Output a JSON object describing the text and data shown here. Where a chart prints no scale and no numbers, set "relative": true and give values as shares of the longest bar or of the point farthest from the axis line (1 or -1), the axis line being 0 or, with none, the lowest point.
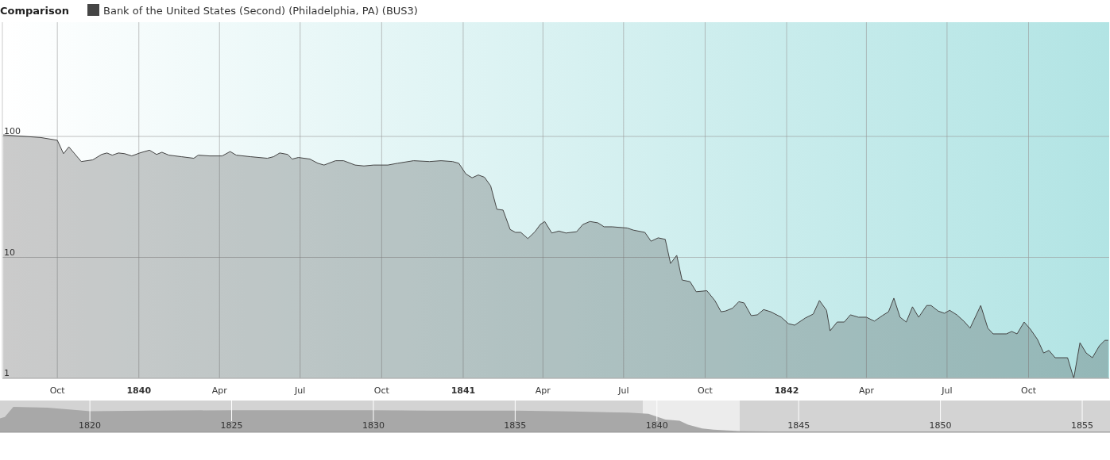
{
  "chart_data": [
    {
      "type": "area",
      "title": "Comparison",
      "legend": "top left",
      "log": "y",
      "grid": true,
      "x": [
        "1839-08-01",
        "1839-09-12",
        "1839-10-01",
        "1839-10-08",
        "1839-10-14",
        "1839-10-28",
        "1839-11-10",
        "1839-11-20",
        "1839-11-26",
        "1839-12-02",
        "1839-12-09",
        "1839-12-16",
        "1839-12-24",
        "1840-01-02",
        "1840-01-13",
        "1840-01-21",
        "1840-01-27",
        "1840-02-04",
        "1840-02-18",
        "1840-03-03",
        "1840-03-08",
        "1840-03-21",
        "1840-04-04",
        "1840-04-13",
        "1840-04-20",
        "1840-05-06",
        "1840-05-25",
        "1840-06-01",
        "1840-06-08",
        "1840-06-17",
        "1840-06-22",
        "1840-06-29",
        "1840-07-12",
        "1840-07-21",
        "1840-07-28",
        "1840-08-10",
        "1840-08-19",
        "1840-09-01",
        "1840-09-11",
        "1840-09-22",
        "1840-10-08",
        "1840-10-19",
        "1840-11-06",
        "1840-11-24",
        "1840-12-07",
        "1840-12-20",
        "1840-12-27",
        "1841-01-04",
        "1841-01-11",
        "1841-01-18",
        "1841-01-25",
        "1841-02-01",
        "1841-02-08",
        "1841-02-15",
        "1841-02-23",
        "1841-03-01",
        "1841-03-07",
        "1841-03-15",
        "1841-03-23",
        "1841-03-29",
        "1841-04-03",
        "1841-04-11",
        "1841-04-19",
        "1841-04-27",
        "1841-05-09",
        "1841-05-16",
        "1841-05-24",
        "1841-06-02",
        "1841-06-09",
        "1841-06-18",
        "1841-07-05",
        "1841-07-12",
        "1841-07-25",
        "1841-08-01",
        "1841-08-09",
        "1841-08-17",
        "1841-08-23",
        "1841-08-30",
        "1841-09-05",
        "1841-09-14",
        "1841-09-21",
        "1841-10-03",
        "1841-10-12",
        "1841-10-19",
        "1841-10-24",
        "1841-11-01",
        "1841-11-08",
        "1841-11-14",
        "1841-11-22",
        "1841-11-29",
        "1841-12-06",
        "1841-12-14",
        "1841-12-26",
        "1842-01-03",
        "1842-01-10",
        "1842-01-22",
        "1842-01-31",
        "1842-02-07",
        "1842-02-15",
        "1842-02-19",
        "1842-02-27",
        "1842-03-07",
        "1842-03-14",
        "1842-03-23",
        "1842-04-01",
        "1842-04-10",
        "1842-04-19",
        "1842-04-26",
        "1842-05-02",
        "1842-05-09",
        "1842-05-16",
        "1842-05-23",
        "1842-05-30",
        "1842-06-08",
        "1842-06-13",
        "1842-06-21",
        "1842-06-28",
        "1842-07-04",
        "1842-07-12",
        "1842-07-20",
        "1842-07-27",
        "1842-08-08",
        "1842-08-16",
        "1842-08-22",
        "1842-09-06",
        "1842-09-12",
        "1842-09-18",
        "1842-09-26",
        "1842-10-03",
        "1842-10-11",
        "1842-10-18",
        "1842-10-24",
        "1842-10-31",
        "1842-11-14",
        "1842-11-21",
        "1842-11-28",
        "1842-12-05",
        "1842-12-12",
        "1842-12-20",
        "1842-12-26",
        "1842-12-30"
      ],
      "series": [
        {
          "name": "Bank of the United States (Second) (Philadelphia, PA) (BUS3)",
          "color": "#454545",
          "values": [
            103,
            98,
            93,
            72,
            82,
            62,
            64,
            71,
            73,
            70,
            73,
            72,
            69,
            73,
            77,
            71,
            74,
            70,
            68,
            66,
            70,
            69,
            69,
            75,
            70,
            68,
            66,
            68,
            73,
            71,
            65,
            67,
            65,
            60,
            58,
            63,
            63,
            58,
            57,
            58,
            58,
            60,
            63,
            62,
            63,
            62,
            60,
            49,
            45.5,
            48,
            46,
            39,
            25,
            24.6,
            17,
            16.1,
            16.1,
            14.3,
            16.3,
            18.7,
            19.8,
            15.9,
            16.5,
            15.9,
            16.3,
            18.7,
            19.8,
            19.3,
            17.9,
            17.9,
            17.5,
            16.8,
            16.1,
            13.6,
            14.5,
            14.1,
            8.9,
            10.4,
            6.5,
            6.3,
            5.2,
            5.3,
            4.4,
            3.55,
            3.6,
            3.8,
            4.3,
            4.2,
            3.3,
            3.35,
            3.7,
            3.55,
            3.2,
            2.83,
            2.75,
            3.15,
            3.4,
            4.4,
            3.65,
            2.47,
            2.92,
            2.92,
            3.35,
            3.2,
            3.2,
            2.97,
            3.3,
            3.55,
            4.6,
            3.2,
            2.92,
            3.9,
            3.2,
            4.0,
            4.0,
            3.6,
            3.45,
            3.65,
            3.35,
            2.97,
            2.6,
            4.0,
            2.6,
            2.33,
            2.33,
            2.44,
            2.33,
            2.92,
            2.55,
            2.1,
            1.62,
            1.7,
            1.48,
            1.48,
            1.0,
            1.97,
            1.62,
            1.48,
            1.86,
            2.06,
            2.06
          ]
        }
      ],
      "xlim": [
        "1839-07-31",
        "1842-12-31"
      ],
      "xticks": [
        {
          "value": "1839-10-01",
          "label": "Oct"
        },
        {
          "value": "1840-01-01",
          "label": "1840"
        },
        {
          "value": "1840-04-01",
          "label": "Apr"
        },
        {
          "value": "1840-07-01",
          "label": "Jul"
        },
        {
          "value": "1840-10-01",
          "label": "Oct"
        },
        {
          "value": "1841-01-01",
          "label": "1841"
        },
        {
          "value": "1841-04-01",
          "label": "Apr"
        },
        {
          "value": "1841-07-01",
          "label": "Jul"
        },
        {
          "value": "1841-10-01",
          "label": "Oct"
        },
        {
          "value": "1842-01-01",
          "label": "1842"
        },
        {
          "value": "1842-04-01",
          "label": "Apr"
        },
        {
          "value": "1842-07-01",
          "label": "Jul"
        },
        {
          "value": "1842-10-01",
          "label": "Oct"
        }
      ],
      "ylim": [
        1,
        880
      ],
      "yticks": [
        1,
        10,
        100
      ]
    },
    {
      "type": "area",
      "relative": true,
      "tick_labels": "x",
      "grid": "x",
      "color": "#a8a8a8",
      "x": [
        1816.83,
        1817.0,
        1817.3,
        1818.5,
        1819.6,
        1820,
        1822,
        1825,
        1828,
        1830,
        1832,
        1835,
        1837,
        1839,
        1839.7,
        1840.3,
        1840.8,
        1841.1,
        1841.6,
        1842,
        1842.9,
        1844,
        1850,
        1855.98
      ],
      "values": [
        0.55,
        0.6,
        1,
        0.97,
        0.87,
        0.83,
        0.85,
        0.87,
        0.87,
        0.87,
        0.85,
        0.85,
        0.82,
        0.77,
        0.73,
        0.5,
        0.45,
        0.3,
        0.15,
        0.1,
        0.05,
        0.03,
        0.03,
        0.02
      ],
      "xlim": [
        1816.83,
        1855.98
      ],
      "xticks": [
        1820,
        1825,
        1830,
        1835,
        1840,
        1845,
        1850,
        1855
      ],
      "bands": [
        {
          "axis": "x",
          "from": 1839.5,
          "to": 1842.92,
          "color": "#ececec"
        }
      ]
    }
  ]
}
